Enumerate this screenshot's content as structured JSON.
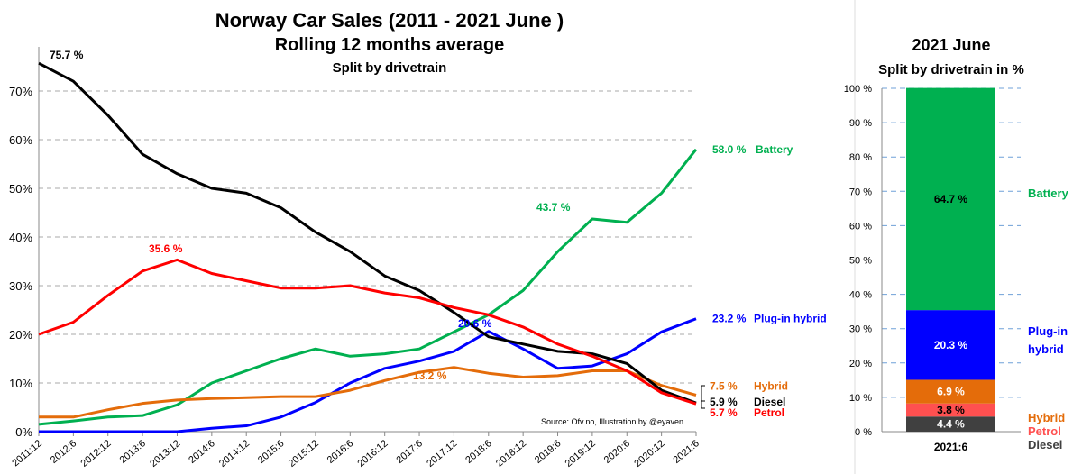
{
  "chart_data": [
    {
      "type": "line",
      "title": "Norway Car Sales (2011 - 2021 June )",
      "subtitle": "Rolling 12 months average",
      "subtitle2": "Split by drivetrain",
      "source": "Source: Ofv.no, Illustration by @eyaven",
      "x": [
        "2011:12",
        "2012:6",
        "2012:12",
        "2013:6",
        "2013:12",
        "2014:6",
        "2014:12",
        "2015:6",
        "2015:12",
        "2016:6",
        "2016:12",
        "2017:6",
        "2017:12",
        "2018:6",
        "2018:12",
        "2019:6",
        "2019:12",
        "2020:6",
        "2020:12",
        "2021:6"
      ],
      "yticks": [
        "0%",
        "10%",
        "20%",
        "30%",
        "40%",
        "50%",
        "60%",
        "70%"
      ],
      "ylim": [
        0,
        70
      ],
      "series": [
        {
          "name": "Battery",
          "color": "#00b050",
          "end_label": "58.0 %",
          "values": [
            1.5,
            2.2,
            3,
            3.3,
            5.5,
            10,
            12.5,
            15,
            17,
            15.5,
            16,
            17,
            20.5,
            24,
            29,
            37,
            43.7,
            43,
            49,
            58
          ]
        },
        {
          "name": "Plug-in hybrid",
          "color": "#0000ff",
          "end_label": "23.2 %",
          "values": [
            0,
            0,
            0,
            0,
            0,
            0.7,
            1.2,
            3,
            6,
            10,
            13,
            14.5,
            16.5,
            20.6,
            17,
            13,
            13.5,
            16,
            20.5,
            23.2
          ]
        },
        {
          "name": "Hybrid",
          "color": "#e46c0a",
          "end_label": "7.5 %",
          "values": [
            3,
            3,
            4.5,
            5.8,
            6.5,
            6.8,
            7,
            7.2,
            7.2,
            8.5,
            10.5,
            12.2,
            13.2,
            12,
            11.2,
            11.5,
            12.5,
            12.5,
            9.5,
            7.5
          ]
        },
        {
          "name": "Diesel",
          "color": "#000000",
          "end_label": "5.9 %",
          "values": [
            75.7,
            72,
            65,
            57,
            53,
            50,
            49,
            46,
            41,
            37,
            32,
            29,
            24.5,
            19.5,
            18,
            16.5,
            16,
            14,
            8.5,
            5.9
          ]
        },
        {
          "name": "Petrol",
          "color": "#ff0000",
          "end_label": "5.7 %",
          "values": [
            20,
            22.5,
            28,
            33,
            35.3,
            32.5,
            31,
            29.5,
            29.5,
            30,
            28.5,
            27.5,
            25.5,
            24,
            21.5,
            18,
            15.5,
            12.5,
            8,
            5.7
          ]
        }
      ],
      "annotations": [
        {
          "text": "75.7 %",
          "color": "#000000",
          "x": "2011:12",
          "y": 75.7
        },
        {
          "text": "35.6 %",
          "color": "#ff0000",
          "x": "2013:9",
          "y": 35.6
        },
        {
          "text": "13.2 %",
          "color": "#e46c0a",
          "x": "2017:12",
          "y": 13.2
        },
        {
          "text": "20.6 %",
          "color": "#0000ff",
          "x": "2018:6",
          "y": 20.6
        },
        {
          "text": "43.7 %",
          "color": "#00b050",
          "x": "2019:12",
          "y": 43.7
        }
      ]
    },
    {
      "type": "bar",
      "stacked": true,
      "title": "2021 June",
      "subtitle": "Split by drivetrain in %",
      "categories": [
        "2021:6"
      ],
      "yticks": [
        "0 %",
        "10 %",
        "20 %",
        "30 %",
        "40 %",
        "50 %",
        "60 %",
        "70 %",
        "80 %",
        "90 %",
        "100 %"
      ],
      "ylim": [
        0,
        100
      ],
      "series": [
        {
          "name": "Diesel",
          "label": "Diesel",
          "color": "#404040",
          "value": 4.4,
          "value_label": "4.4 %",
          "label_color": "#404040"
        },
        {
          "name": "Petrol",
          "label": "Petrol",
          "color": "#ff5050",
          "value": 3.8,
          "value_label": "3.8 %",
          "label_color": "#ff5050"
        },
        {
          "name": "Hybrid",
          "label": "Hybrid",
          "color": "#e46c0a",
          "value": 6.9,
          "value_label": "6.9 %",
          "label_color": "#e46c0a"
        },
        {
          "name": "Plug-in hybrid",
          "label": "Plug-in",
          "label2": "hybrid",
          "color": "#0000ff",
          "value": 20.3,
          "value_label": "20.3 %",
          "label_color": "#0000ff"
        },
        {
          "name": "Battery",
          "label": "Battery",
          "color": "#00b050",
          "value": 64.7,
          "value_label": "64.7 %",
          "label_color": "#00b050"
        }
      ]
    }
  ]
}
